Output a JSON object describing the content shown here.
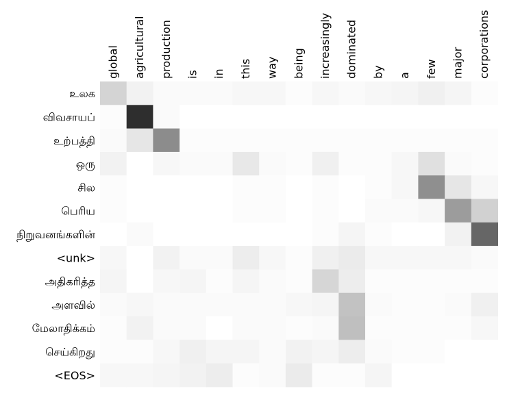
{
  "chart_data": {
    "type": "heatmap",
    "x_labels": [
      "global",
      "agricultural",
      "production",
      "is",
      "in",
      "this",
      "way",
      "being",
      "increasingly",
      "dominated",
      "by",
      "a",
      "few",
      "major",
      "corporations"
    ],
    "y_labels": [
      "உலக",
      "விவசாயப்",
      "உற்பத்தி",
      "ஒரு",
      "சில",
      "பெரிய",
      "நிறுவனங்களின்",
      "<unk>",
      "அதிகரித்த",
      "அளவில்",
      "மேலாதிக்கம்",
      "செய்கிறது",
      "<EOS>"
    ],
    "values": [
      [
        0.17,
        0.05,
        0.02,
        0.02,
        0.02,
        0.03,
        0.03,
        0.01,
        0.03,
        0.02,
        0.03,
        0.04,
        0.06,
        0.04,
        0.01
      ],
      [
        0.01,
        0.82,
        0.02,
        0.0,
        0.0,
        0.0,
        0.0,
        0.0,
        0.0,
        0.0,
        0.0,
        0.0,
        0.0,
        0.0,
        0.0
      ],
      [
        0.02,
        0.1,
        0.45,
        0.01,
        0.01,
        0.01,
        0.01,
        0.01,
        0.01,
        0.01,
        0.01,
        0.01,
        0.01,
        0.01,
        0.01
      ],
      [
        0.05,
        0.0,
        0.03,
        0.02,
        0.02,
        0.09,
        0.02,
        0.01,
        0.06,
        0.01,
        0.01,
        0.03,
        0.12,
        0.02,
        0.01
      ],
      [
        0.01,
        0.0,
        0.0,
        0.0,
        0.0,
        0.01,
        0.01,
        0.0,
        0.01,
        0.0,
        0.01,
        0.03,
        0.44,
        0.1,
        0.03
      ],
      [
        0.01,
        0.0,
        0.0,
        0.0,
        0.0,
        0.01,
        0.01,
        0.0,
        0.01,
        0.0,
        0.02,
        0.02,
        0.03,
        0.39,
        0.18
      ],
      [
        0.0,
        0.02,
        0.0,
        0.0,
        0.0,
        0.0,
        0.0,
        0.0,
        0.01,
        0.04,
        0.01,
        0.0,
        0.0,
        0.05,
        0.6
      ],
      [
        0.03,
        0.0,
        0.05,
        0.02,
        0.02,
        0.07,
        0.03,
        0.01,
        0.06,
        0.08,
        0.03,
        0.03,
        0.03,
        0.03,
        0.02
      ],
      [
        0.04,
        0.0,
        0.03,
        0.04,
        0.01,
        0.04,
        0.02,
        0.01,
        0.16,
        0.07,
        0.01,
        0.01,
        0.01,
        0.01,
        0.01
      ],
      [
        0.02,
        0.03,
        0.02,
        0.02,
        0.02,
        0.02,
        0.02,
        0.03,
        0.04,
        0.24,
        0.02,
        0.01,
        0.01,
        0.02,
        0.06
      ],
      [
        0.01,
        0.05,
        0.02,
        0.02,
        0.0,
        0.02,
        0.02,
        0.01,
        0.02,
        0.25,
        0.01,
        0.01,
        0.01,
        0.01,
        0.03
      ],
      [
        0.01,
        0.01,
        0.03,
        0.06,
        0.04,
        0.04,
        0.02,
        0.05,
        0.04,
        0.07,
        0.02,
        0.01,
        0.01,
        0.0,
        0.0
      ],
      [
        0.03,
        0.03,
        0.04,
        0.05,
        0.07,
        0.01,
        0.02,
        0.08,
        0.01,
        0.01,
        0.04,
        0.0,
        0.0,
        0.0,
        0.0
      ]
    ],
    "vmin": 0,
    "vmax": 1,
    "colormap": "greys",
    "title": "",
    "xlabel": "",
    "ylabel": "",
    "grid": false,
    "legend": "none"
  }
}
